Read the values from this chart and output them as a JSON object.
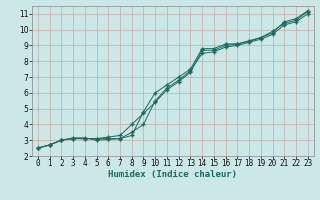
{
  "title": "",
  "xlabel": "Humidex (Indice chaleur)",
  "ylabel": "",
  "xlim": [
    -0.5,
    23.5
  ],
  "ylim": [
    2,
    11.5
  ],
  "xticks": [
    0,
    1,
    2,
    3,
    4,
    5,
    6,
    7,
    8,
    9,
    10,
    11,
    12,
    13,
    14,
    15,
    16,
    17,
    18,
    19,
    20,
    21,
    22,
    23
  ],
  "yticks": [
    2,
    3,
    4,
    5,
    6,
    7,
    8,
    9,
    10,
    11
  ],
  "bg_color": "#cce8e6",
  "grid_color": "#c8a8a8",
  "line_color": "#1a6b5e",
  "line1_y": [
    2.5,
    2.7,
    3.0,
    3.1,
    3.1,
    3.1,
    3.1,
    3.1,
    3.3,
    4.8,
    6.0,
    6.5,
    7.0,
    7.5,
    8.8,
    8.8,
    9.1,
    9.1,
    9.3,
    9.5,
    9.8,
    10.5,
    10.7,
    11.2
  ],
  "line2_y": [
    2.5,
    2.7,
    3.0,
    3.15,
    3.15,
    3.0,
    3.05,
    3.1,
    3.5,
    4.0,
    5.5,
    6.3,
    6.8,
    7.4,
    8.5,
    8.6,
    8.9,
    9.0,
    9.2,
    9.4,
    9.7,
    10.3,
    10.5,
    11.0
  ],
  "line3_y": [
    2.5,
    2.7,
    3.0,
    3.1,
    3.1,
    3.1,
    3.2,
    3.3,
    4.0,
    4.7,
    5.4,
    6.2,
    6.7,
    7.3,
    8.7,
    8.7,
    9.0,
    9.1,
    9.25,
    9.5,
    9.9,
    10.4,
    10.6,
    11.15
  ],
  "tick_fontsize": 5.5,
  "xlabel_fontsize": 6.5
}
